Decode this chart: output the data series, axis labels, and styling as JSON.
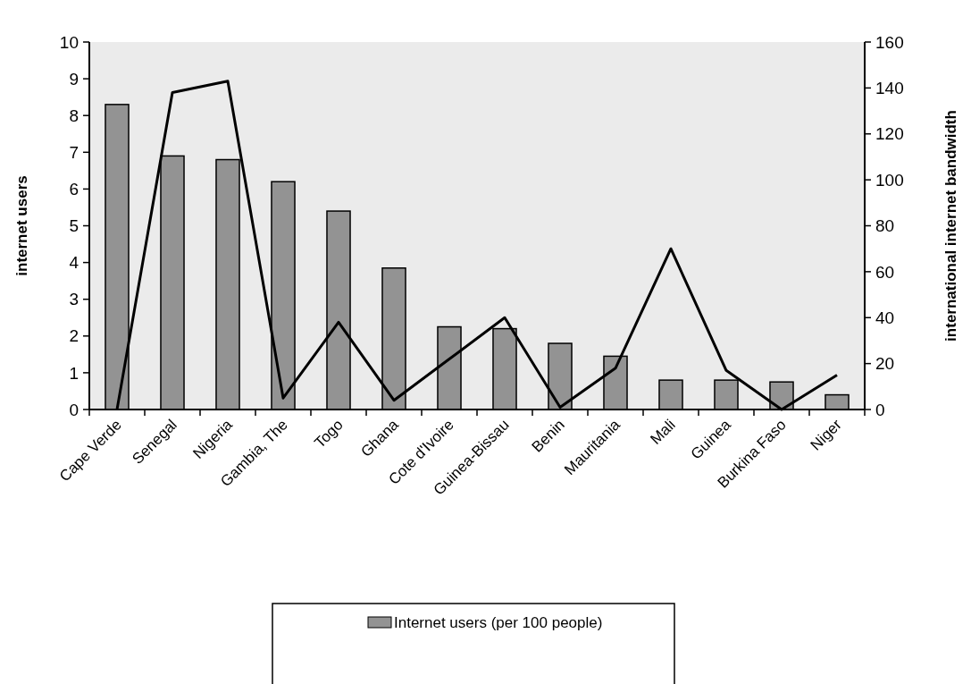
{
  "chart_data": {
    "type": "bar",
    "categories": [
      "Cape Verde",
      "Senegal",
      "Nigeria",
      "Gambia, The",
      "Togo",
      "Ghana",
      "Cote d'Ivoire",
      "Guinea-Bissau",
      "Benin",
      "Mauritania",
      "Mali",
      "Guinea",
      "Burkina Faso",
      "Niger"
    ],
    "series": [
      {
        "name": "Internet users (per 100 people)",
        "color": "#939393",
        "values": [
          8.3,
          6.9,
          6.8,
          6.2,
          5.4,
          3.85,
          2.25,
          2.2,
          1.8,
          1.45,
          0.8,
          0.8,
          0.75,
          0.4
        ]
      },
      {
        "type": "line",
        "axis": "y2",
        "color": "#000000",
        "values": [
          0,
          138,
          143,
          5,
          38,
          4,
          22,
          40,
          1,
          18,
          70,
          17,
          0,
          15
        ]
      }
    ],
    "ylabel": "internet users",
    "y2label": "international internet bandwidth",
    "ylim": [
      0,
      10
    ],
    "yticks": [
      0,
      1,
      2,
      3,
      4,
      5,
      6,
      7,
      8,
      9,
      10
    ],
    "y2lim": [
      0,
      160
    ],
    "y2ticks": [
      0,
      20,
      40,
      60,
      80,
      100,
      120,
      140,
      160
    ],
    "legend": "bottom"
  }
}
